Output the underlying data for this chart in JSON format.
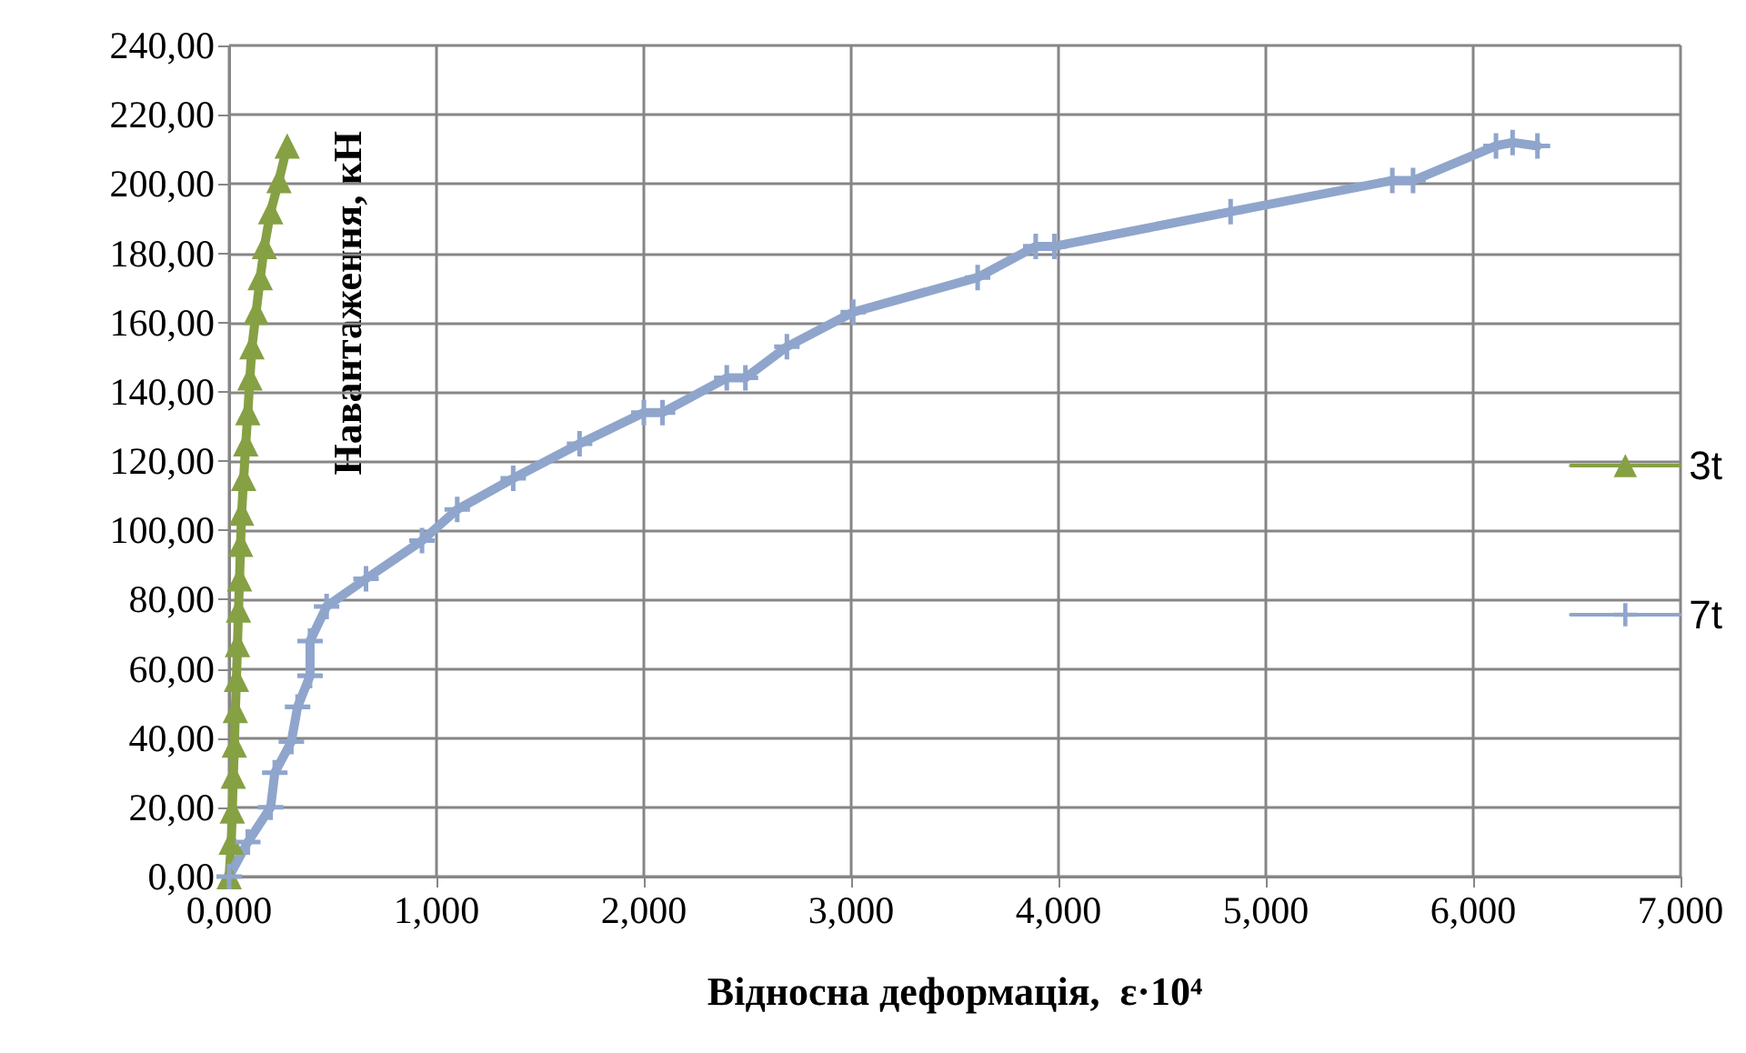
{
  "chart_data": {
    "type": "line",
    "xlabel": "Відносна деформація,  ε·10⁴",
    "ylabel": "Навантаження, кН",
    "xlim": [
      0,
      7
    ],
    "xticks": [
      {
        "value": 0,
        "label": "0,000"
      },
      {
        "value": 1,
        "label": "1,000"
      },
      {
        "value": 2,
        "label": "2,000"
      },
      {
        "value": 3,
        "label": "3,000"
      },
      {
        "value": 4,
        "label": "4,000"
      },
      {
        "value": 5,
        "label": "5,000"
      },
      {
        "value": 6,
        "label": "6,000"
      },
      {
        "value": 7,
        "label": "7,000"
      }
    ],
    "ylim": [
      0,
      240
    ],
    "yticks": [
      {
        "value": 0,
        "label": "0,00"
      },
      {
        "value": 20,
        "label": "20,00"
      },
      {
        "value": 40,
        "label": "40,00"
      },
      {
        "value": 60,
        "label": "60,00"
      },
      {
        "value": 80,
        "label": "80,00"
      },
      {
        "value": 100,
        "label": "100,00"
      },
      {
        "value": 120,
        "label": "120,00"
      },
      {
        "value": 140,
        "label": "140,00"
      },
      {
        "value": 160,
        "label": "160,00"
      },
      {
        "value": 180,
        "label": "180,00"
      },
      {
        "value": 200,
        "label": "200,00"
      },
      {
        "value": 220,
        "label": "220,00"
      },
      {
        "value": 240,
        "label": "240,00"
      }
    ],
    "grid": true,
    "legend": "right",
    "line_style": "solid",
    "series": [
      {
        "name": "3t",
        "color": "#86a044",
        "marker": "triangle",
        "x": [
          0,
          0.01,
          0.015,
          0.02,
          0.025,
          0.03,
          0.035,
          0.04,
          0.045,
          0.05,
          0.055,
          0.06,
          0.07,
          0.08,
          0.09,
          0.1,
          0.11,
          0.13,
          0.15,
          0.17,
          0.2,
          0.24,
          0.28
        ],
        "values": [
          0,
          10,
          19,
          29,
          38,
          48,
          57,
          67,
          77,
          86,
          96,
          105,
          115,
          125,
          134,
          144,
          153,
          163,
          173,
          182,
          192,
          201,
          211
        ]
      },
      {
        "name": "7t",
        "color": "#8fa5cc",
        "marker": "cross",
        "x": [
          0,
          0.09,
          0.2,
          0.22,
          0.3,
          0.33,
          0.39,
          0.39,
          0.47,
          0.66,
          0.93,
          1.1,
          1.37,
          1.69,
          2.0,
          2.09,
          2.4,
          2.49,
          2.69,
          3.01,
          3.61,
          3.89,
          3.98,
          4.83,
          5.61,
          5.71,
          6.11,
          6.19,
          6.31
        ],
        "values": [
          0,
          10,
          20,
          30,
          39,
          49,
          58,
          68,
          78,
          86,
          97,
          106,
          115,
          125,
          134,
          134,
          144,
          144,
          153,
          163,
          173,
          182,
          182,
          192,
          201,
          201,
          211,
          212,
          211
        ]
      }
    ]
  }
}
